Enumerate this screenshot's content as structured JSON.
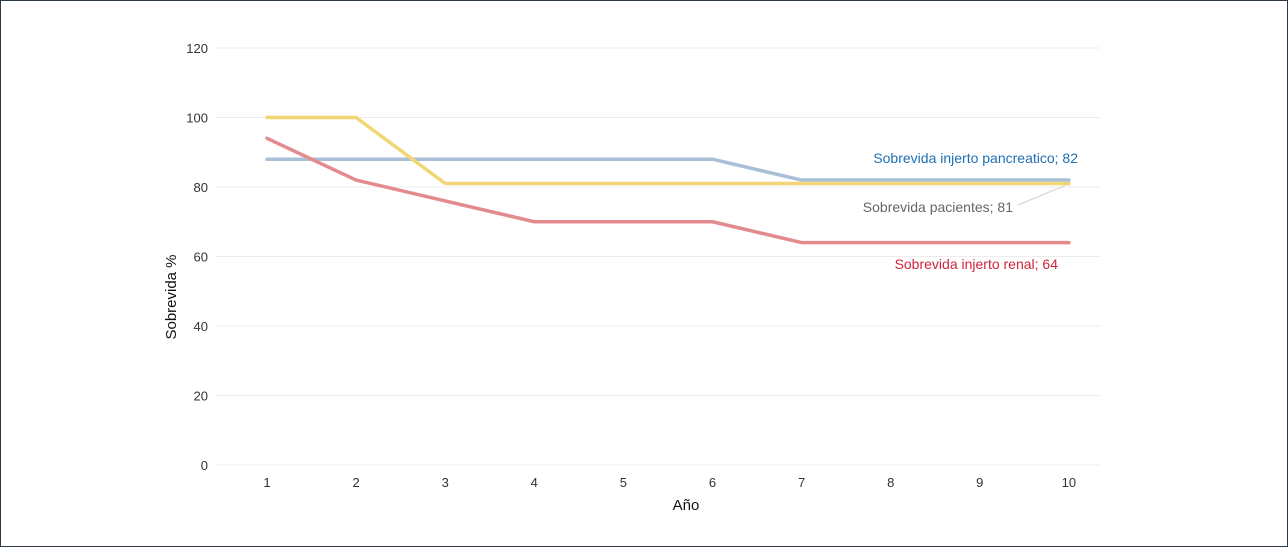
{
  "chart_data": {
    "type": "line",
    "xlabel": "Año",
    "ylabel": "Sobrevida %",
    "categories": [
      "1",
      "2",
      "3",
      "4",
      "5",
      "6",
      "7",
      "8",
      "9",
      "10"
    ],
    "x": [
      1,
      2,
      3,
      4,
      5,
      6,
      7,
      8,
      9,
      10
    ],
    "ylim": [
      0,
      120
    ],
    "yticks": [
      0,
      20,
      40,
      60,
      80,
      100,
      120
    ],
    "grid": true,
    "legend": "none",
    "series": [
      {
        "key": "pancreatico",
        "name": "Sobrevida injerto pancreatico",
        "label": "Sobrevida injerto pancreatico; 82",
        "color": "#a9bfd8",
        "label_color": "#1f6fb2",
        "values": [
          88,
          88,
          88,
          88,
          88,
          88,
          82,
          82,
          82,
          82
        ]
      },
      {
        "key": "pacientes",
        "name": "Sobrevida pacientes",
        "label": "Sobrevida pacientes; 81",
        "color": "#f2d575",
        "label_color": "#666666",
        "values": [
          100,
          100,
          81,
          81,
          81,
          81,
          81,
          81,
          81,
          81
        ]
      },
      {
        "key": "renal",
        "name": "Sobrevida injerto renal",
        "label": "Sobrevida injerto renal; 64",
        "color": "#e38a8f",
        "label_color": "#d0253a",
        "values": [
          94,
          82,
          76,
          70,
          70,
          70,
          64,
          64,
          64,
          64
        ]
      }
    ]
  }
}
